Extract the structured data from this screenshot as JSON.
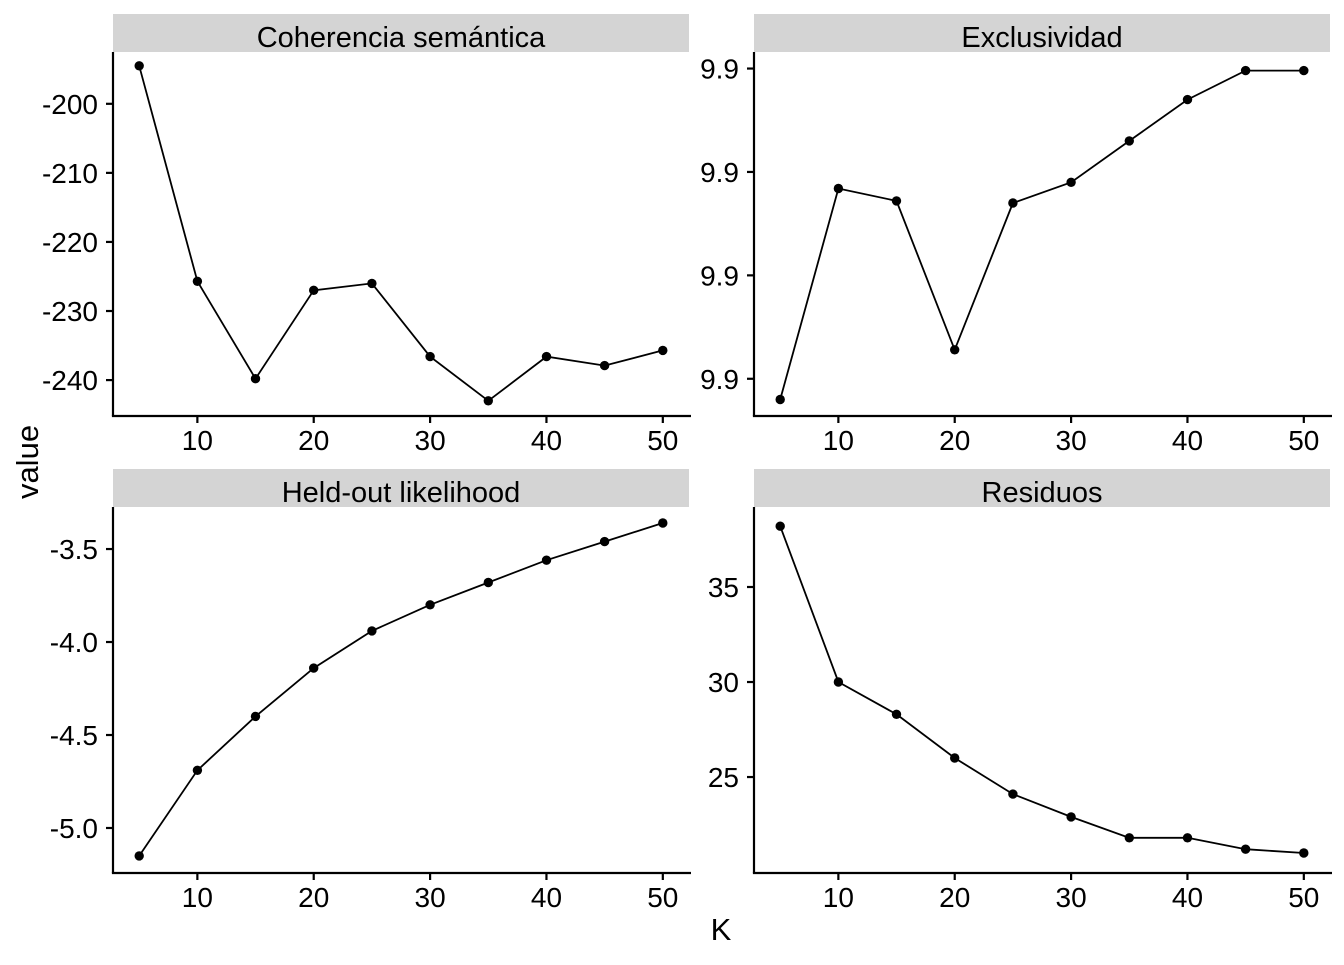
{
  "figure": {
    "x_axis_label": "K",
    "y_axis_label": "value",
    "background_color": "#ffffff",
    "strip_fill_color": "#d4d4d4",
    "line_color": "#000000",
    "point_color": "#000000",
    "text_color": "#000000",
    "grid": "off",
    "legend": "none",
    "facet_layout": "2x2"
  },
  "chart_data": [
    {
      "type": "line",
      "title": "Coherencia semántica",
      "xlabel": "K",
      "ylabel": "value",
      "x": [
        5,
        10,
        15,
        20,
        25,
        30,
        35,
        40,
        45,
        50
      ],
      "values": [
        -194.5,
        -225.7,
        -239.8,
        -227.0,
        -226.0,
        -236.6,
        -243.0,
        -236.6,
        -237.9,
        -235.7
      ],
      "x_ticks": [
        {
          "label": "10",
          "value": 10
        },
        {
          "label": "20",
          "value": 20
        },
        {
          "label": "30",
          "value": 30
        },
        {
          "label": "40",
          "value": 40
        },
        {
          "label": "50",
          "value": 50
        }
      ],
      "y_ticks": [
        {
          "label": "-200",
          "value": -200
        },
        {
          "label": "-210",
          "value": -210
        },
        {
          "label": "-220",
          "value": -220
        },
        {
          "label": "-230",
          "value": -230
        },
        {
          "label": "-240",
          "value": -240
        }
      ],
      "x_domain": [
        2.75,
        52.25
      ],
      "y_domain": [
        -245.2,
        -192.5
      ]
    },
    {
      "type": "line",
      "title": "Exclusividad",
      "xlabel": "K",
      "ylabel": "value",
      "x": [
        5,
        10,
        15,
        20,
        25,
        30,
        35,
        40,
        45,
        50
      ],
      "values": [
        9.884,
        9.8942,
        9.8936,
        9.8864,
        9.8935,
        9.8945,
        9.8965,
        9.8985,
        9.8999,
        9.8999
      ],
      "x_ticks": [
        {
          "label": "10",
          "value": 10
        },
        {
          "label": "20",
          "value": 20
        },
        {
          "label": "30",
          "value": 30
        },
        {
          "label": "40",
          "value": 40
        },
        {
          "label": "50",
          "value": 50
        }
      ],
      "y_ticks": [
        {
          "label": "9.9",
          "value": 9.9
        },
        {
          "label": "9.9",
          "value": 9.895
        },
        {
          "label": "9.9",
          "value": 9.89
        },
        {
          "label": "9.9",
          "value": 9.885
        }
      ],
      "x_domain": [
        2.75,
        52.25
      ],
      "y_domain": [
        9.8832,
        9.9008
      ]
    },
    {
      "type": "line",
      "title": "Held-out likelihood",
      "xlabel": "K",
      "ylabel": "value",
      "x": [
        5,
        10,
        15,
        20,
        25,
        30,
        35,
        40,
        45,
        50
      ],
      "values": [
        -5.15,
        -4.69,
        -4.4,
        -4.14,
        -3.94,
        -3.8,
        -3.68,
        -3.56,
        -3.46,
        -3.36
      ],
      "x_ticks": [
        {
          "label": "10",
          "value": 10
        },
        {
          "label": "20",
          "value": 20
        },
        {
          "label": "30",
          "value": 30
        },
        {
          "label": "40",
          "value": 40
        },
        {
          "label": "50",
          "value": 50
        }
      ],
      "y_ticks": [
        {
          "label": "-3.5",
          "value": -3.5
        },
        {
          "label": "-4.0",
          "value": -4.0
        },
        {
          "label": "-4.5",
          "value": -4.5
        },
        {
          "label": "-5.0",
          "value": -5.0
        }
      ],
      "x_domain": [
        2.75,
        52.25
      ],
      "y_domain": [
        -5.242,
        -3.274
      ]
    },
    {
      "type": "line",
      "title": "Residuos",
      "xlabel": "K",
      "ylabel": "value",
      "x": [
        5,
        10,
        15,
        20,
        25,
        30,
        35,
        40,
        45,
        50
      ],
      "values": [
        38.2,
        30.0,
        28.3,
        26.0,
        24.1,
        22.9,
        21.8,
        21.8,
        21.2,
        21.0
      ],
      "x_ticks": [
        {
          "label": "10",
          "value": 10
        },
        {
          "label": "20",
          "value": 20
        },
        {
          "label": "30",
          "value": 30
        },
        {
          "label": "40",
          "value": 40
        },
        {
          "label": "50",
          "value": 50
        }
      ],
      "y_ticks": [
        {
          "label": "35",
          "value": 35
        },
        {
          "label": "30",
          "value": 30
        },
        {
          "label": "25",
          "value": 25
        }
      ],
      "x_domain": [
        2.75,
        52.25
      ],
      "y_domain": [
        19.95,
        39.21
      ]
    }
  ]
}
